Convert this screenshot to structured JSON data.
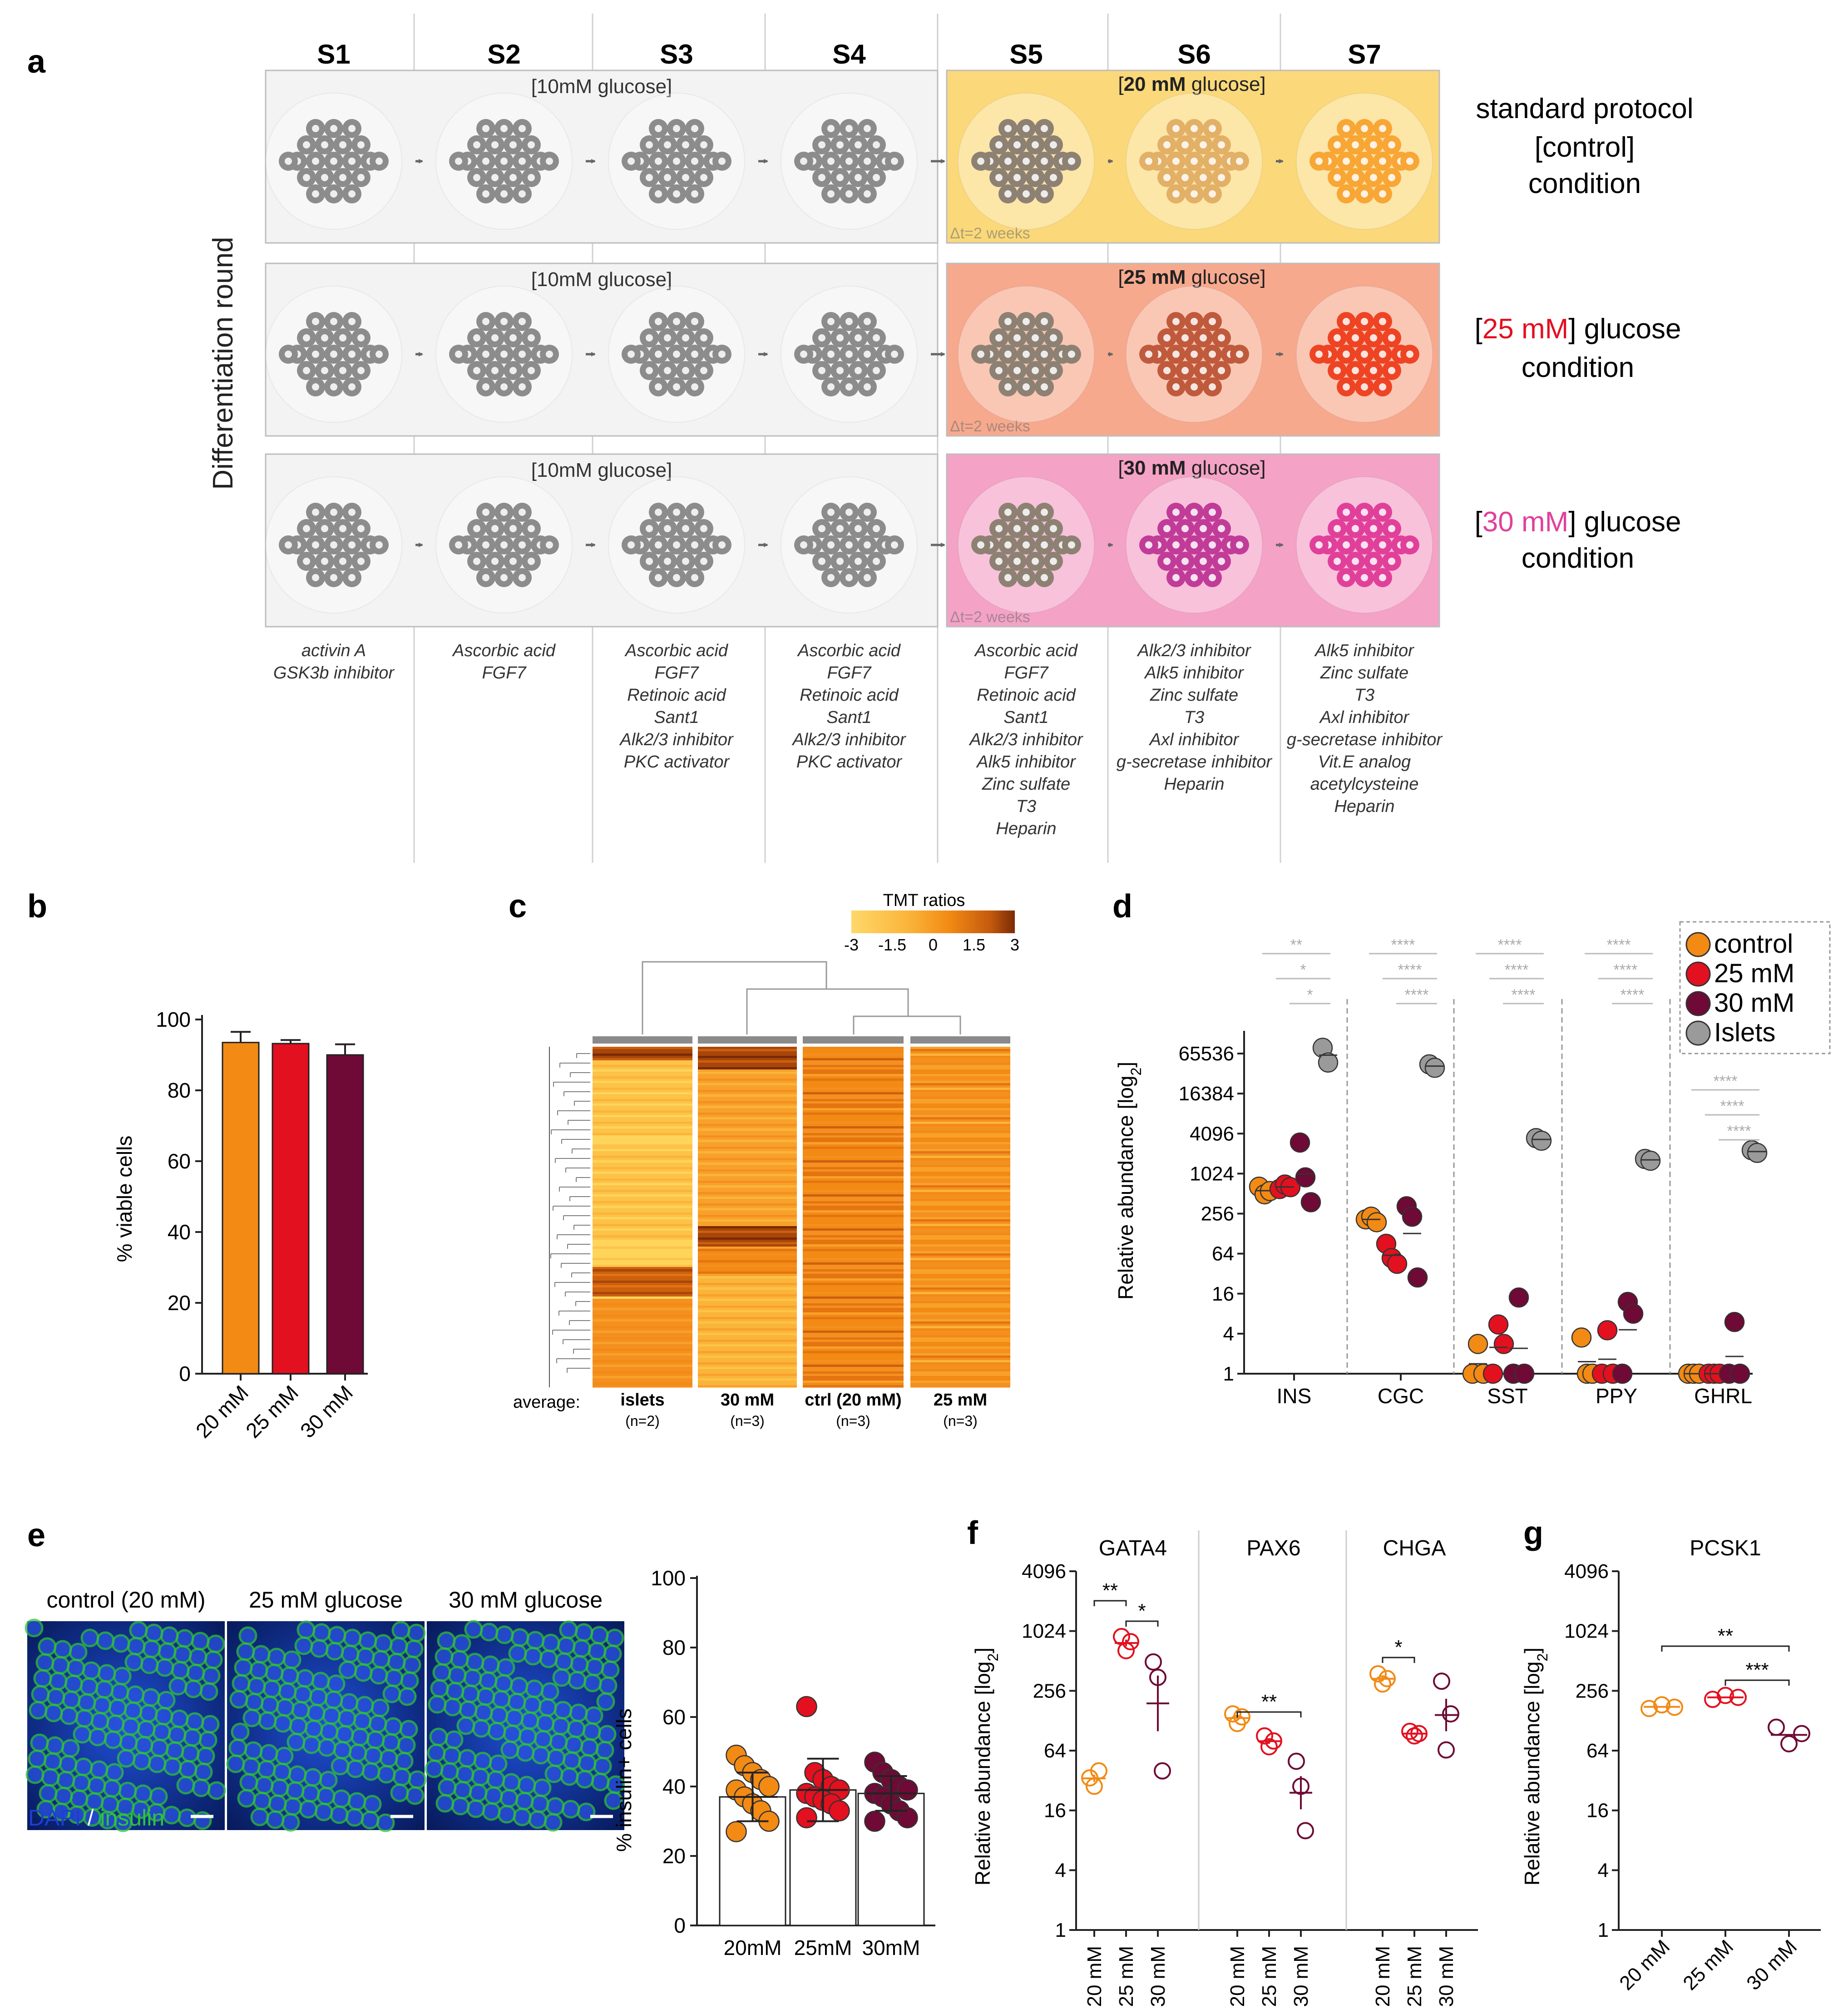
{
  "colors": {
    "control": "#f28a14",
    "mM25": "#e3101f",
    "mM30": "#6e0a35",
    "islets": "#9a9a9a",
    "panel_control": "#fbd97a",
    "panel_25": "#f7a98e",
    "panel_30": "#f4a2c6",
    "panel_grey": "#f3f3f3",
    "dish_s1": "#8c8c8c",
    "dish_s5": "#8d8173",
    "ctrl_s6": "#e2b066",
    "ctrl_s7": "#f8a635",
    "g25_s6": "#c05a3c",
    "g25_s7": "#ee4424",
    "g30_s6": "#c13c98",
    "g30_s7": "#e1409a",
    "dapi_blue": "#1f3dd6",
    "insulin_green": "#2fc33d"
  },
  "panel_a": {
    "letter": "a",
    "stages": [
      "S1",
      "S2",
      "S3",
      "S4",
      "S5",
      "S6",
      "S7"
    ],
    "y_label": "Differentiation round",
    "rows": [
      {
        "low_glucose": "[10mM glucose]",
        "high_glucose_value": "20 mM",
        "high_glucose_unit": " glucose]",
        "high_glucose_open": "[",
        "delta_t": "Δt=2 weeks",
        "label_line1": "standard protocol",
        "label_line2": "[control]",
        "label_line3": "condition"
      },
      {
        "low_glucose": "[10mM glucose]",
        "high_glucose_value": "25 mM",
        "high_glucose_unit": " glucose]",
        "high_glucose_open": "[",
        "delta_t": "Δt=2 weeks",
        "label_open": "[",
        "label_value": "25 mM",
        "label_close": "] glucose",
        "label_line2": "condition"
      },
      {
        "low_glucose": "[10mM glucose]",
        "high_glucose_value": "30 mM",
        "high_glucose_unit": " glucose]",
        "high_glucose_open": "[",
        "delta_t": "Δt=2 weeks",
        "label_open": "[",
        "label_value": "30 mM",
        "label_close": "] glucose",
        "label_line2": "condition"
      }
    ],
    "media": [
      [
        "activin A",
        "GSK3b inhibitor"
      ],
      [
        "Ascorbic acid",
        "FGF7"
      ],
      [
        "Ascorbic acid",
        "FGF7",
        "Retinoic acid",
        "Sant1",
        "Alk2/3 inhibitor",
        "PKC activator"
      ],
      [
        "Ascorbic acid",
        "FGF7",
        "Retinoic acid",
        "Sant1",
        "Alk2/3 inhibitor",
        "PKC activator"
      ],
      [
        "Ascorbic acid",
        "FGF7",
        "Retinoic acid",
        "Sant1",
        "Alk2/3 inhibitor",
        "Alk5 inhibitor",
        "Zinc sulfate",
        "T3",
        "Heparin"
      ],
      [
        "Alk2/3 inhibitor",
        "Alk5 inhibitor",
        "Zinc sulfate",
        "T3",
        "Axl inhibitor",
        "g-secretase inhibitor",
        "Heparin"
      ],
      [
        "Alk5 inhibitor",
        "Zinc sulfate",
        "T3",
        "Axl inhibitor",
        "g-secretase inhibitor",
        "Vit.E analog",
        "acetylcysteine",
        "Heparin"
      ]
    ]
  },
  "panel_b": {
    "letter": "b",
    "ylabel": "% viable cells",
    "ylim": [
      0,
      100
    ],
    "yticks": [
      "0",
      "20",
      "40",
      "60",
      "80",
      "100"
    ],
    "chart_data": {
      "type": "bar",
      "categories": [
        "20 mM",
        "25 mM",
        "30 mM"
      ],
      "values": [
        93.5,
        93.2,
        90
      ],
      "errors": [
        3,
        1,
        3
      ],
      "ylabel": "% viable cells",
      "ylim": [
        0,
        100
      ]
    }
  },
  "panel_c": {
    "letter": "c",
    "legend_title": "TMT ratios",
    "legend_ticks": [
      "-3",
      "-1.5",
      "0",
      "1.5",
      "3"
    ],
    "average_label": "average:",
    "columns": [
      {
        "name": "islets",
        "n": "(n=2)"
      },
      {
        "name": "30 mM",
        "n": "(n=3)"
      },
      {
        "name": "ctrl (20 mM)",
        "n": "(n=3)"
      },
      {
        "name": "25 mM",
        "n": "(n=3)"
      }
    ]
  },
  "panel_d": {
    "letter": "d",
    "ylabel": "Relative abundance [log",
    "ylabel_sub": "2",
    "ylabel_close": "]",
    "yticks": [
      "1",
      "4",
      "16",
      "64",
      "256",
      "1024",
      "4096",
      "16384",
      "65536"
    ],
    "genes": [
      "INS",
      "CGC",
      "SST",
      "PPY",
      "GHRL"
    ],
    "legend": [
      "control",
      "25 mM",
      "30 mM",
      "Islets"
    ],
    "sig": [
      [
        "**",
        "*",
        "*"
      ],
      [
        "****",
        "****",
        "****"
      ],
      [
        "****",
        "****",
        "****"
      ],
      [
        "****",
        "****",
        "****"
      ],
      [
        "****",
        "****",
        "****"
      ]
    ],
    "chart_data": {
      "type": "scatter",
      "scale": "log2",
      "categories": [
        "INS",
        "CGC",
        "SST",
        "PPY",
        "GHRL"
      ],
      "series": [
        {
          "name": "control",
          "values": [
            [
              650,
              500,
              560
            ],
            [
              210,
              230,
              190
            ],
            [
              1,
              2.8,
              1
            ],
            [
              3.5,
              1,
              1
            ],
            [
              1,
              1,
              1
            ]
          ]
        },
        {
          "name": "25 mM",
          "values": [
            [
              600,
              700,
              640
            ],
            [
              90,
              55,
              45
            ],
            [
              1,
              5.5,
              2.8
            ],
            [
              1,
              4.5,
              1
            ],
            [
              1,
              1,
              1
            ]
          ]
        },
        {
          "name": "30 mM",
          "values": [
            [
              3000,
              900,
              380
            ],
            [
              330,
              230,
              28
            ],
            [
              1,
              14,
              1
            ],
            [
              1,
              12,
              8
            ],
            [
              1,
              6,
              1
            ]
          ]
        },
        {
          "name": "Islets",
          "values": [
            [
              80000,
              48000
            ],
            [
              45000,
              40000
            ],
            [
              3500,
              3200
            ],
            [
              1700,
              1600
            ],
            [
              2300,
              2100
            ]
          ]
        }
      ]
    }
  },
  "panel_e": {
    "letter": "e",
    "image_labels": [
      "control (20 mM)",
      "25 mM glucose",
      "30 mM glucose"
    ],
    "stain_dapi": "DAPI",
    "stain_sep": " / ",
    "stain_insulin": "insulin",
    "ylabel": "% insulin+ cells",
    "yticks": [
      "0",
      "20",
      "40",
      "60",
      "80",
      "100"
    ],
    "chart_data": {
      "type": "bar",
      "categories": [
        "20mM",
        "25mM",
        "30mM"
      ],
      "values": [
        37,
        39,
        38
      ],
      "errors": [
        7,
        9,
        5
      ],
      "ylim": [
        0,
        100
      ],
      "ylabel": "% insulin+ cells",
      "points": [
        [
          49,
          46,
          44,
          42,
          40,
          39,
          37,
          35,
          33,
          30,
          27
        ],
        [
          63,
          44,
          42,
          40,
          39,
          38,
          37,
          36,
          35,
          33,
          31
        ],
        [
          47,
          44,
          42,
          40,
          39,
          38,
          37,
          35,
          33,
          31,
          30
        ]
      ]
    }
  },
  "panel_f": {
    "letter": "f",
    "ylabel": "Relative abundance [log",
    "ylabel_sub": "2",
    "ylabel_close": "]",
    "yticks": [
      "1",
      "4",
      "16",
      "64",
      "256",
      "1024",
      "4096"
    ],
    "genes": [
      "GATA4",
      "PAX6",
      "CHGA"
    ],
    "xlabels": [
      "20 mM",
      "25 mM",
      "30 mM"
    ],
    "sig_gata4": [
      "**",
      "*"
    ],
    "sig_pax6": [
      "**"
    ],
    "sig_chga": [
      "*"
    ],
    "chart_data": {
      "type": "scatter",
      "scale": "log2",
      "categories": [
        "GATA4",
        "PAX6",
        "CHGA"
      ],
      "groups": [
        "20 mM",
        "25 mM",
        "30 mM"
      ],
      "values": [
        [
          [
            34,
            28,
            40
          ],
          [
            900,
            650,
            800
          ],
          [
            500,
            350,
            40
          ]
        ],
        [
          [
            150,
            120,
            140
          ],
          [
            90,
            70,
            80
          ],
          [
            50,
            28,
            10
          ]
        ],
        [
          [
            380,
            300,
            340
          ],
          [
            100,
            90,
            95
          ],
          [
            320,
            65,
            150
          ]
        ]
      ]
    }
  },
  "panel_g": {
    "letter": "g",
    "title": "PCSK1",
    "ylabel": "Relative abundance [log",
    "ylabel_sub": "2",
    "ylabel_close": "]",
    "yticks": [
      "1",
      "4",
      "16",
      "64",
      "256",
      "1024",
      "4096"
    ],
    "xlabels": [
      "20 mM",
      "25 mM",
      "30 mM"
    ],
    "sig": [
      "**",
      "***"
    ],
    "chart_data": {
      "type": "scatter",
      "scale": "log2",
      "categories": [
        "20 mM",
        "25 mM",
        "30 mM"
      ],
      "values": [
        [
          170,
          185,
          175
        ],
        [
          210,
          230,
          220
        ],
        [
          110,
          75,
          95
        ]
      ]
    }
  }
}
